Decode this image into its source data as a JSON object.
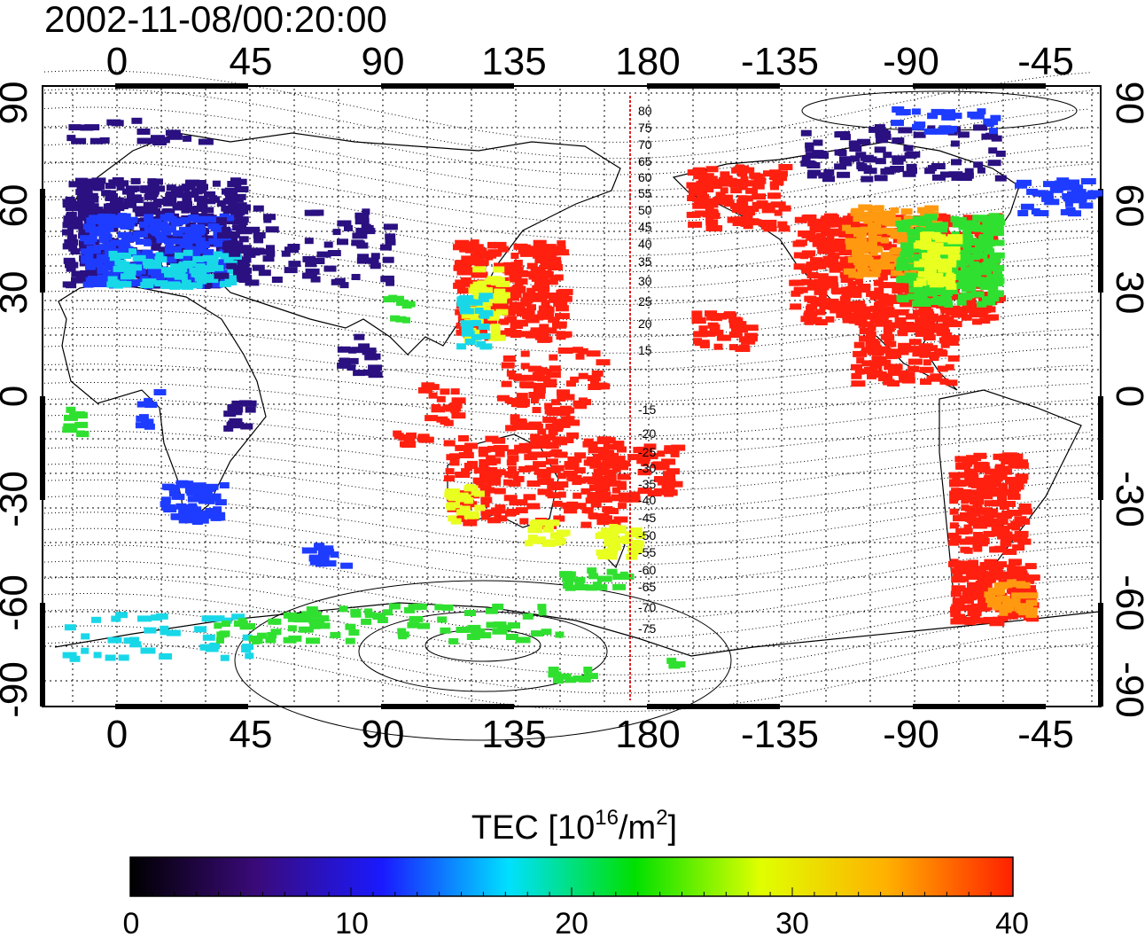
{
  "title": "2002-11-08/00:20:00",
  "lon_ticks_top": [
    "0",
    "45",
    "90",
    "135",
    "180",
    "-135",
    "-90",
    "-45"
  ],
  "lon_ticks_bottom": [
    "0",
    "45",
    "90",
    "135",
    "180",
    "-135",
    "-90",
    "-45"
  ],
  "lat_ticks_left": [
    "90",
    "60",
    "30",
    "0",
    "-30",
    "-60",
    "-90"
  ],
  "lat_ticks_right": [
    "90",
    "60",
    "30",
    "0",
    "-30",
    "-60",
    "-90"
  ],
  "contour_labels_north": [
    "80",
    "75",
    "70",
    "65",
    "60",
    "55",
    "50",
    "45",
    "40",
    "35",
    "30",
    "25",
    "20",
    "15"
  ],
  "contour_labels_south": [
    "-15",
    "-20",
    "-25",
    "-30",
    "-35",
    "-40",
    "-45",
    "-50",
    "-55",
    "-60",
    "-65",
    "-70",
    "-75"
  ],
  "colorbar": {
    "title": "TEC  [10",
    "title_exp": "16",
    "title_unit": "/m",
    "title_unit_exp": "2",
    "title_close": "]",
    "tick_labels": [
      "0",
      "10",
      "20",
      "30",
      "40"
    ],
    "min": 0,
    "max": 40,
    "colormap": [
      "#000000",
      "#3a0a7a",
      "#1a1aff",
      "#00e0ff",
      "#00e000",
      "#e0ff00",
      "#ffb000",
      "#ff2000"
    ]
  },
  "colors": {
    "low": "#2a1080",
    "blue": "#1e3cff",
    "cyan": "#18d8e8",
    "green": "#30e030",
    "yellow": "#e8ff20",
    "orange": "#ff9a10",
    "red": "#ff2010",
    "marker_line": "#dd2020"
  },
  "map": {
    "lon_min": -20,
    "lon_max": 320,
    "lat_min": -90,
    "lat_max": 90,
    "dateline_marker_lon": 175
  }
}
